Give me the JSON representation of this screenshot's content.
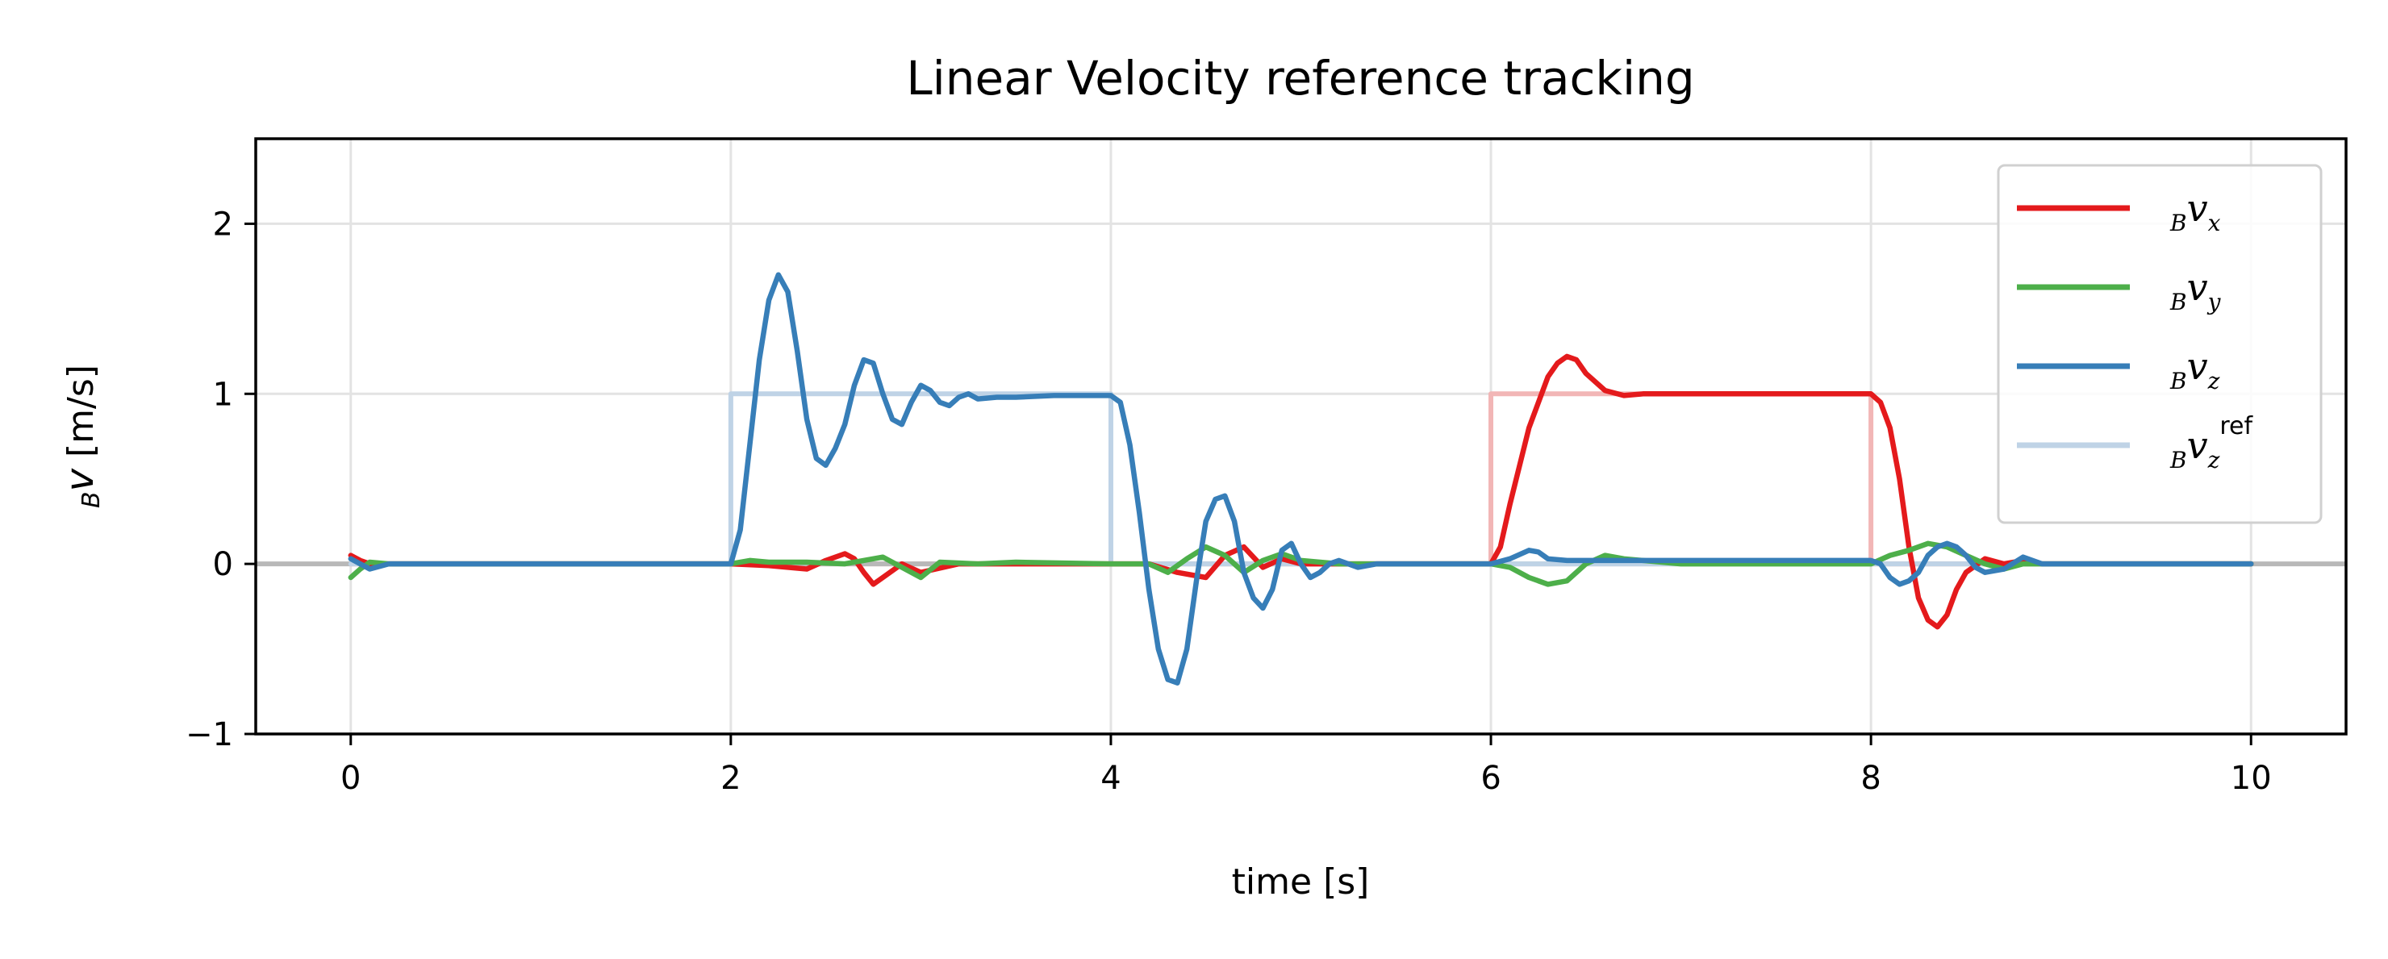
{
  "chart_data": {
    "type": "line",
    "title": "Linear Velocity reference tracking",
    "xlabel": "time [s]",
    "ylabel_sub": "B",
    "ylabel_main": "v",
    "ylabel_unit": " [m/s]",
    "xlim": [
      -0.5,
      10.5
    ],
    "ylim": [
      -1,
      2.5
    ],
    "x_ticks": [
      0,
      2,
      4,
      6,
      8,
      10
    ],
    "y_ticks": [
      -1,
      0,
      1,
      2
    ],
    "x_tick_labels": [
      "0",
      "2",
      "4",
      "6",
      "8",
      "10"
    ],
    "y_tick_labels": [
      "−1",
      "0",
      "1",
      "2"
    ],
    "grid": true,
    "legend_position": "upper-right",
    "series": [
      {
        "name": "Bv_x",
        "legend_sub": "B",
        "legend_main": "v",
        "legend_index": "x",
        "legend_sup": "",
        "color": "#e41a1c",
        "x": [
          0,
          0.05,
          0.1,
          0.2,
          0.5,
          1,
          1.5,
          2,
          2.2,
          2.4,
          2.5,
          2.6,
          2.65,
          2.7,
          2.75,
          2.8,
          2.9,
          3,
          3.2,
          3.5,
          4,
          4.2,
          4.35,
          4.5,
          4.6,
          4.7,
          4.8,
          4.9,
          5,
          5.2,
          5.5,
          6,
          6.05,
          6.1,
          6.2,
          6.3,
          6.35,
          6.4,
          6.45,
          6.5,
          6.6,
          6.7,
          6.8,
          7,
          7.5,
          8,
          8.05,
          8.1,
          8.15,
          8.2,
          8.25,
          8.3,
          8.35,
          8.4,
          8.45,
          8.5,
          8.6,
          8.7,
          8.8,
          8.9,
          9,
          10
        ],
        "values": [
          0.05,
          0.02,
          0,
          0,
          0,
          0,
          0,
          0,
          -0.01,
          -0.03,
          0.02,
          0.06,
          0.03,
          -0.05,
          -0.12,
          -0.08,
          0,
          -0.05,
          0,
          0,
          0,
          0,
          -0.05,
          -0.08,
          0.05,
          0.1,
          -0.02,
          0.03,
          0,
          0,
          0,
          0,
          0.1,
          0.35,
          0.8,
          1.1,
          1.18,
          1.22,
          1.2,
          1.12,
          1.02,
          0.99,
          1,
          1,
          1,
          1,
          0.95,
          0.8,
          0.5,
          0.1,
          -0.2,
          -0.33,
          -0.37,
          -0.3,
          -0.15,
          -0.05,
          0.03,
          0,
          0.02,
          0,
          0,
          0
        ]
      },
      {
        "name": "Bv_y",
        "legend_sub": "B",
        "legend_main": "v",
        "legend_index": "y",
        "legend_sup": "",
        "color": "#4daf4a",
        "x": [
          0,
          0.05,
          0.1,
          0.2,
          0.5,
          1,
          1.5,
          2,
          2.1,
          2.2,
          2.4,
          2.6,
          2.8,
          2.9,
          3,
          3.1,
          3.3,
          3.5,
          4,
          4.2,
          4.3,
          4.4,
          4.5,
          4.6,
          4.7,
          4.8,
          4.9,
          5,
          5.2,
          5.5,
          6,
          6.1,
          6.2,
          6.3,
          6.4,
          6.5,
          6.6,
          6.7,
          7,
          7.5,
          8,
          8.1,
          8.2,
          8.3,
          8.4,
          8.5,
          8.6,
          8.7,
          8.8,
          9,
          10
        ],
        "values": [
          -0.08,
          -0.03,
          0.01,
          0,
          0,
          0,
          0,
          0,
          0.02,
          0.01,
          0.01,
          0,
          0.04,
          -0.02,
          -0.08,
          0.01,
          0,
          0.01,
          0,
          0,
          -0.05,
          0.03,
          0.1,
          0.05,
          -0.05,
          0.02,
          0.06,
          0.02,
          0,
          0,
          0,
          -0.02,
          -0.08,
          -0.12,
          -0.1,
          0,
          0.05,
          0.03,
          0,
          0,
          0,
          0.05,
          0.08,
          0.12,
          0.1,
          0.05,
          0,
          -0.03,
          0,
          0,
          0
        ]
      },
      {
        "name": "Bv_z",
        "legend_sub": "B",
        "legend_main": "v",
        "legend_index": "z",
        "legend_sup": "",
        "color": "#377eb8",
        "x": [
          0,
          0.05,
          0.1,
          0.2,
          0.5,
          1,
          1.5,
          2,
          2.05,
          2.1,
          2.15,
          2.2,
          2.25,
          2.3,
          2.35,
          2.4,
          2.45,
          2.5,
          2.55,
          2.6,
          2.65,
          2.7,
          2.75,
          2.8,
          2.85,
          2.9,
          2.95,
          3,
          3.05,
          3.1,
          3.15,
          3.2,
          3.25,
          3.3,
          3.4,
          3.5,
          3.7,
          4,
          4.05,
          4.1,
          4.15,
          4.2,
          4.25,
          4.3,
          4.35,
          4.4,
          4.45,
          4.5,
          4.55,
          4.6,
          4.65,
          4.7,
          4.75,
          4.8,
          4.85,
          4.9,
          4.95,
          5,
          5.05,
          5.1,
          5.15,
          5.2,
          5.3,
          5.4,
          5.5,
          6,
          6.1,
          6.2,
          6.25,
          6.3,
          6.4,
          6.5,
          6.7,
          7,
          7.5,
          8,
          8.05,
          8.1,
          8.15,
          8.2,
          8.25,
          8.3,
          8.35,
          8.4,
          8.45,
          8.5,
          8.55,
          8.6,
          8.7,
          8.8,
          8.9,
          9,
          10
        ],
        "values": [
          0.03,
          0,
          -0.03,
          0,
          0,
          0,
          0,
          0,
          0.2,
          0.7,
          1.2,
          1.55,
          1.7,
          1.6,
          1.25,
          0.85,
          0.62,
          0.58,
          0.68,
          0.82,
          1.05,
          1.2,
          1.18,
          1.0,
          0.85,
          0.82,
          0.95,
          1.05,
          1.02,
          0.95,
          0.93,
          0.98,
          1.0,
          0.97,
          0.98,
          0.98,
          0.99,
          0.99,
          0.95,
          0.7,
          0.3,
          -0.15,
          -0.5,
          -0.68,
          -0.7,
          -0.5,
          -0.1,
          0.25,
          0.38,
          0.4,
          0.25,
          -0.05,
          -0.2,
          -0.26,
          -0.15,
          0.08,
          0.12,
          0,
          -0.08,
          -0.05,
          0,
          0.02,
          -0.02,
          0,
          0,
          0,
          0.03,
          0.08,
          0.07,
          0.03,
          0.02,
          0.02,
          0.02,
          0.02,
          0.02,
          0.02,
          0,
          -0.08,
          -0.12,
          -0.1,
          -0.05,
          0.05,
          0.1,
          0.12,
          0.1,
          0.05,
          -0.02,
          -0.05,
          -0.03,
          0.04,
          0,
          0,
          0
        ]
      },
      {
        "name": "Bv_z ref",
        "legend_sub": "B",
        "legend_main": "v",
        "legend_index": "z",
        "legend_sup": "ref",
        "color": "#bfd3e6",
        "step": true,
        "x": [
          0,
          2,
          2,
          4,
          4,
          10
        ],
        "values": [
          0,
          0,
          1,
          1,
          0,
          0
        ]
      }
    ],
    "unlabeled_series": [
      {
        "color": "#f2b6b6",
        "step": true,
        "x": [
          0,
          6,
          6,
          8,
          8,
          10
        ],
        "values": [
          0,
          0,
          1,
          1,
          0,
          0
        ]
      },
      {
        "color": "#b8b8b8",
        "step": false,
        "x": [
          -0.5,
          10.5
        ],
        "values": [
          0,
          0
        ]
      }
    ]
  }
}
